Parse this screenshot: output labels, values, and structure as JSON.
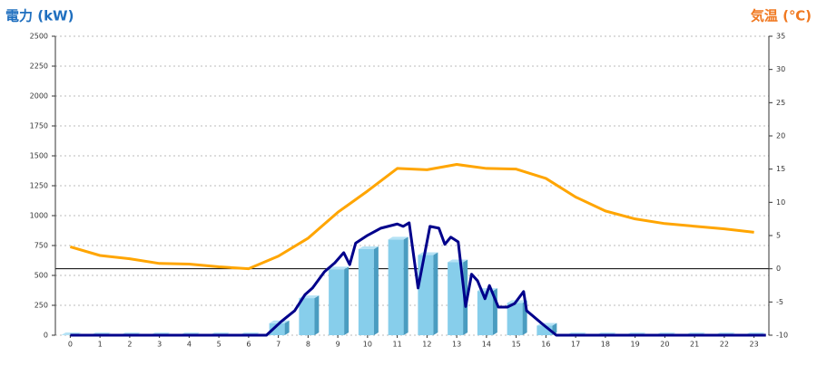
{
  "chart_data": {
    "type": "combo",
    "ylabel": "電力 (kW)",
    "y2label": "気温 (℃)",
    "categories": [
      "0",
      "1",
      "2",
      "3",
      "4",
      "5",
      "6",
      "7",
      "8",
      "9",
      "10",
      "11",
      "12",
      "13",
      "14",
      "15",
      "16",
      "17",
      "18",
      "19",
      "20",
      "21",
      "22",
      "23"
    ],
    "ylim": [
      0,
      2500
    ],
    "yticks": [
      0,
      250,
      500,
      750,
      1000,
      1250,
      1500,
      1750,
      2000,
      2250,
      2500
    ],
    "y2lim": [
      -10,
      35
    ],
    "y2ticks": [
      -10,
      -5,
      0,
      5,
      10,
      15,
      20,
      25,
      30,
      35
    ],
    "grid": true,
    "y2_zero_line": true,
    "series": [
      {
        "type": "bar",
        "color": "#87ceeb",
        "values": [
          0,
          0,
          0,
          0,
          0,
          0,
          0,
          100,
          310,
          550,
          720,
          800,
          670,
          610,
          370,
          270,
          80,
          0,
          0,
          0,
          0,
          0,
          0,
          0
        ]
      },
      {
        "type": "line",
        "color": "#00008b",
        "x": [
          0,
          6.6,
          7.1,
          7.55,
          7.9,
          8.15,
          8.55,
          8.9,
          9.2,
          9.4,
          9.6,
          10.0,
          10.45,
          11.0,
          11.2,
          11.4,
          11.7,
          12.1,
          12.4,
          12.6,
          12.8,
          13.05,
          13.3,
          13.5,
          13.7,
          13.95,
          14.1,
          14.4,
          14.7,
          14.95,
          15.25,
          15.35,
          15.9,
          16.35,
          23.4
        ],
        "values": [
          0,
          0,
          115,
          205,
          340,
          395,
          530,
          605,
          690,
          590,
          770,
          835,
          895,
          930,
          910,
          940,
          395,
          910,
          895,
          760,
          820,
          780,
          240,
          510,
          455,
          305,
          415,
          235,
          235,
          265,
          365,
          205,
          90,
          0,
          0
        ]
      },
      {
        "type": "line",
        "axis": "y2",
        "color": "#ffa500",
        "values": [
          3.3,
          2.0,
          1.5,
          0.8,
          0.7,
          0.3,
          0,
          1.9,
          4.6,
          8.5,
          11.7,
          15.1,
          14.9,
          15.7,
          15.1,
          15.0,
          13.6,
          10.8,
          8.7,
          7.5,
          6.8,
          6.4,
          6.0,
          5.5
        ]
      }
    ]
  }
}
